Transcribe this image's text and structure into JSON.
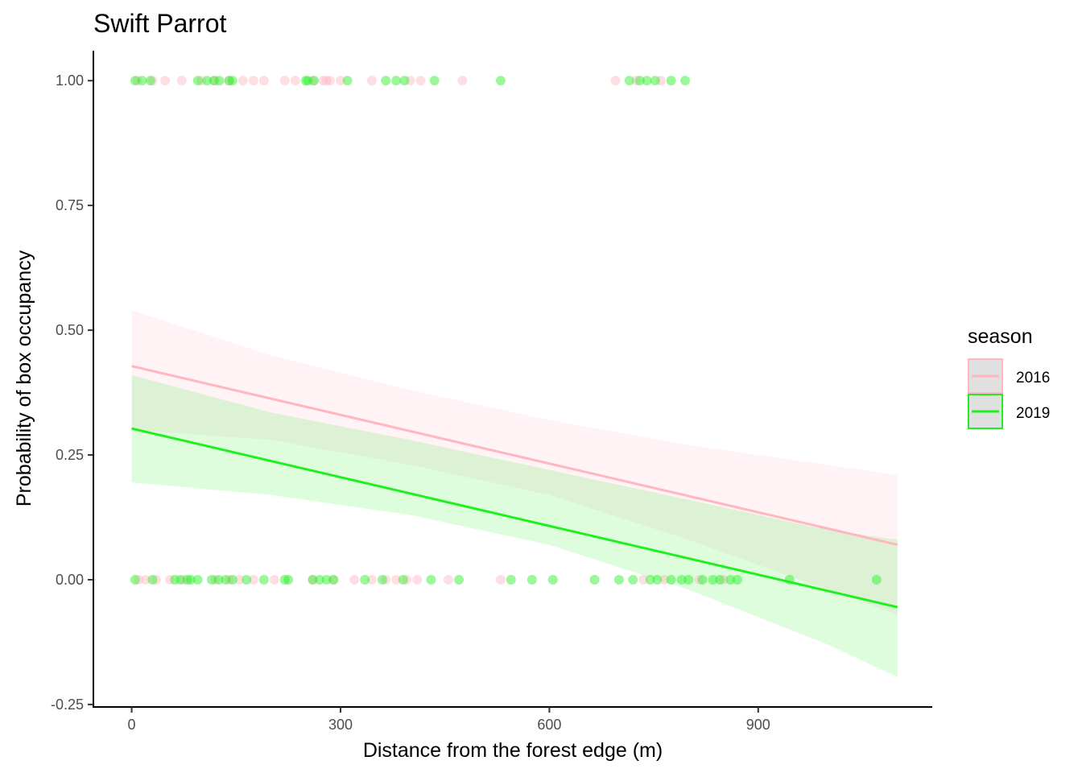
{
  "chart_data": {
    "type": "scatter",
    "title": "Swift Parrot",
    "xlabel": "Distance from the forest edge (m)",
    "ylabel": "Probability of box occupancy",
    "xlim": [
      -55,
      1150
    ],
    "ylim": [
      -0.255,
      1.06
    ],
    "x_ticks": [
      0,
      300,
      600,
      900
    ],
    "y_ticks": [
      -0.25,
      0.0,
      0.25,
      0.5,
      0.75,
      1.0
    ],
    "x_tick_labels": [
      "0",
      "300",
      "600",
      "900"
    ],
    "y_tick_labels": [
      "-0.25",
      "0.00",
      "0.25",
      "0.50",
      "0.75",
      "1.00"
    ],
    "grid": false,
    "legend": {
      "title": "season",
      "position": "right",
      "entries": [
        {
          "label": "2016",
          "color": "#ffb6c1"
        },
        {
          "label": "2019",
          "color": "#1ef01e"
        }
      ]
    },
    "series": [
      {
        "name": "2016",
        "color": "#ffb6c1",
        "fit": {
          "x": [
            0,
            1100
          ],
          "y": [
            0.428,
            0.07
          ]
        },
        "ribbon": {
          "x": [
            0,
            200,
            400,
            600,
            800,
            1000,
            1100
          ],
          "lower": [
            0.3,
            0.28,
            0.23,
            0.17,
            0.08,
            -0.02,
            -0.07
          ],
          "upper": [
            0.54,
            0.45,
            0.38,
            0.32,
            0.27,
            0.23,
            0.21
          ]
        },
        "points_at_1": [
          8,
          30,
          48,
          72,
          100,
          120,
          140,
          160,
          175,
          190,
          220,
          235,
          260,
          275,
          280,
          285,
          300,
          345,
          400,
          415,
          475,
          695,
          725,
          760
        ],
        "points_at_0": [
          10,
          20,
          35,
          55,
          75,
          120,
          140,
          155,
          175,
          205,
          260,
          290,
          320,
          345,
          365,
          380,
          395,
          410,
          455,
          530,
          735,
          765,
          815,
          850
        ]
      },
      {
        "name": "2019",
        "color": "#1ef01e",
        "fit": {
          "x": [
            0,
            1100
          ],
          "y": [
            0.303,
            -0.055
          ]
        },
        "ribbon": {
          "x": [
            0,
            200,
            400,
            600,
            800,
            1000,
            1100
          ],
          "lower": [
            0.195,
            0.17,
            0.13,
            0.07,
            -0.02,
            -0.13,
            -0.195
          ],
          "upper": [
            0.41,
            0.335,
            0.28,
            0.22,
            0.16,
            0.1,
            0.08
          ]
        },
        "points_at_1": [
          5,
          15,
          27,
          95,
          108,
          118,
          126,
          140,
          145,
          250,
          253,
          262,
          310,
          365,
          380,
          392,
          435,
          530,
          715,
          730,
          740,
          752,
          775,
          795
        ],
        "points_at_0": [
          5,
          30,
          62,
          70,
          80,
          85,
          95,
          115,
          125,
          135,
          145,
          165,
          190,
          220,
          225,
          260,
          270,
          280,
          290,
          335,
          360,
          390,
          430,
          470,
          545,
          575,
          605,
          665,
          700,
          720,
          745,
          755,
          775,
          790,
          800,
          820,
          835,
          845,
          860,
          870,
          945,
          1070
        ]
      }
    ]
  }
}
